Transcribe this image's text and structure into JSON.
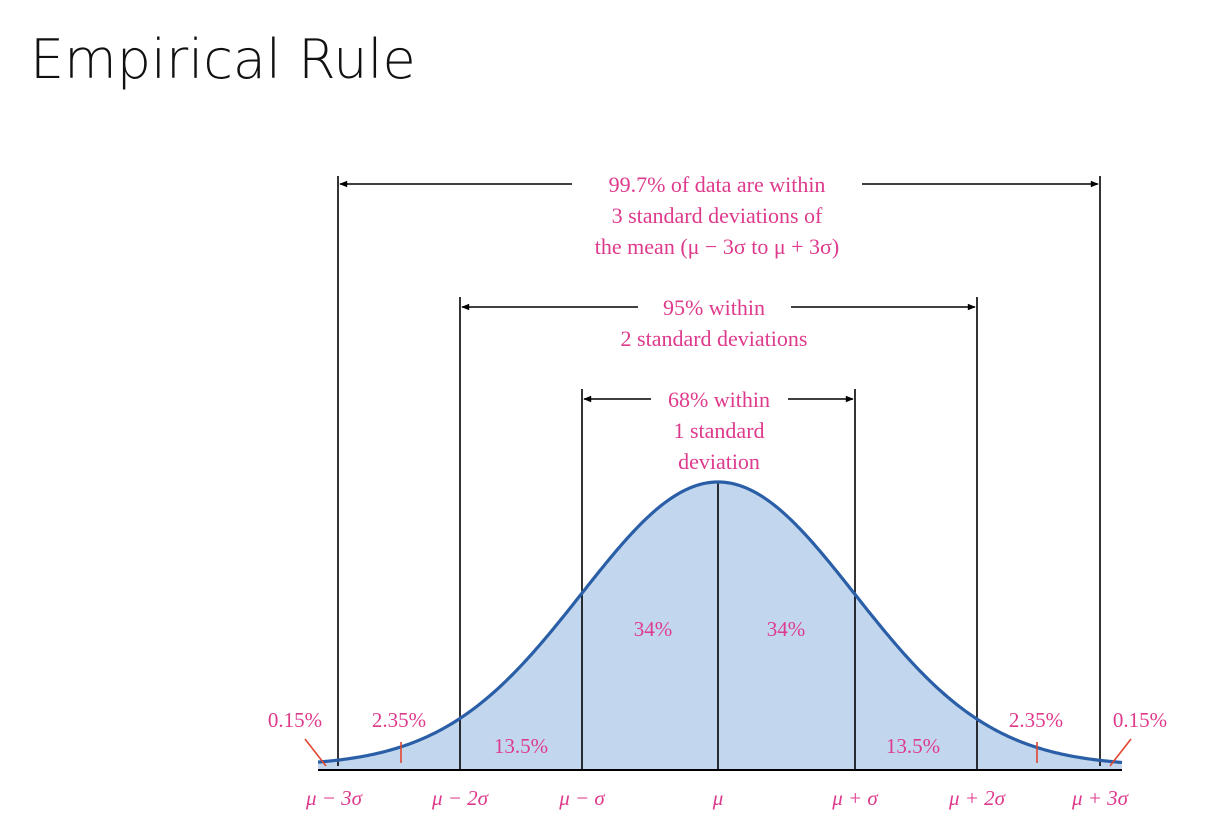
{
  "title": "Empirical Rule",
  "colors": {
    "curve": "#2a5fa8",
    "fill": "#c2d7ee",
    "label": "#de3a8c",
    "line": "#000000",
    "tail_tick": "#e0452f"
  },
  "spans": {
    "three_sd": {
      "line1": "99.7% of data are within",
      "line2": "3 standard deviations of",
      "line3": "the mean (μ − 3σ to μ + 3σ)"
    },
    "two_sd": {
      "line1": "95% within",
      "line2": "2 standard deviations"
    },
    "one_sd": {
      "line1": "68% within",
      "line2": "1 standard",
      "line3": "deviation"
    }
  },
  "regions": {
    "left_inner": "34%",
    "right_inner": "34%",
    "left_middle": "13.5%",
    "right_middle": "13.5%",
    "left_outer": "2.35%",
    "right_outer": "2.35%",
    "left_tail": "0.15%",
    "right_tail": "0.15%"
  },
  "axis_labels": {
    "m3": "μ − 3σ",
    "m2": "μ − 2σ",
    "m1": "μ − σ",
    "mu": "μ",
    "p1": "μ + σ",
    "p2": "μ + 2σ",
    "p3": "μ + 3σ"
  }
}
